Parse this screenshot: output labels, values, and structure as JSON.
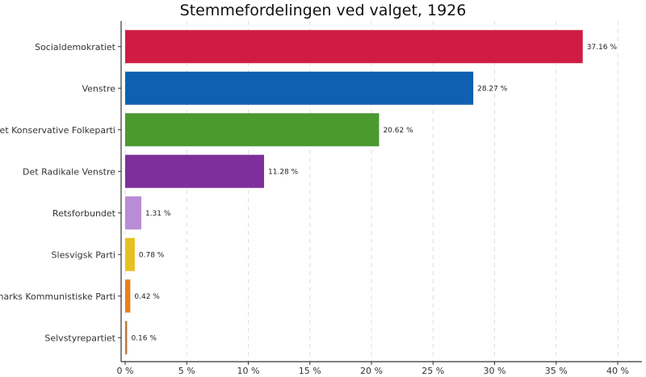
{
  "chart_data": {
    "type": "bar",
    "orientation": "horizontal",
    "title": "Stemmefordelingen ved valget, 1926",
    "xlabel": "",
    "ylabel": "",
    "xlim": [
      0,
      42
    ],
    "x_ticks": [
      0,
      5,
      10,
      15,
      20,
      25,
      30,
      35,
      40
    ],
    "x_tick_labels": [
      "0 %",
      "5 %",
      "10 %",
      "15 %",
      "20 %",
      "25 %",
      "30 %",
      "35 %",
      "40 %"
    ],
    "grid": "vertical dashed",
    "legend": "none",
    "categories": [
      "Socialdemokratiet",
      "Venstre",
      "Det Konservative Folkeparti",
      "Det Radikale Venstre",
      "Retsforbundet",
      "Slesvigsk Parti",
      "Danmarks Kommunistiske Parti",
      "Selvstyrepartiet"
    ],
    "values": [
      37.16,
      28.27,
      20.62,
      11.28,
      1.31,
      0.78,
      0.42,
      0.16
    ],
    "value_labels": [
      "37.16 %",
      "28.27 %",
      "20.62 %",
      "11.28 %",
      "1.31 %",
      "0.78 %",
      "0.42 %",
      "0.16 %"
    ],
    "colors": [
      "#d01c44",
      "#1060b0",
      "#4a9a30",
      "#7e2f9c",
      "#b98cd6",
      "#e8c020",
      "#e88020",
      "#c07838"
    ]
  }
}
